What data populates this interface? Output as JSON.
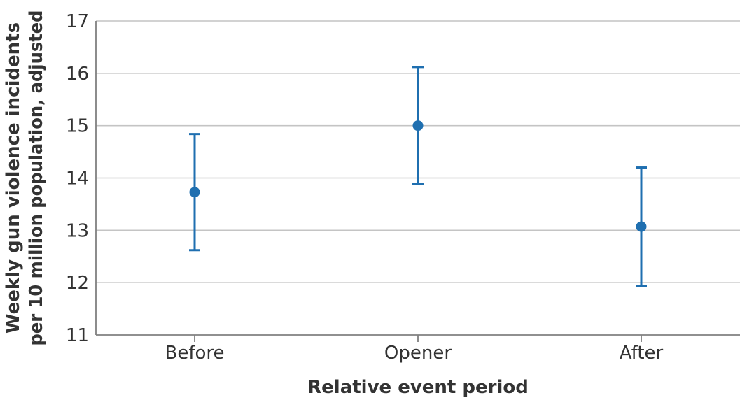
{
  "chart_data": {
    "type": "scatter",
    "categories": [
      "Before",
      "Opener",
      "After"
    ],
    "series": [
      {
        "values": [
          13.73,
          15.0,
          13.07
        ],
        "ci_lower": [
          12.62,
          13.88,
          11.94
        ],
        "ci_upper": [
          14.84,
          16.12,
          14.2
        ]
      }
    ],
    "xlabel": "Relative event period",
    "ylabel_line1": "Weekly gun violence incidents",
    "ylabel_line2": "per 10 million population, adjusted",
    "ylim": [
      11,
      17
    ],
    "yticks": [
      11,
      12,
      13,
      14,
      15,
      16,
      17
    ],
    "grid": true,
    "colors": {
      "marker": "#1f6fb0",
      "grid": "#c4c4c4",
      "axis": "#808080",
      "text": "#333333"
    }
  }
}
